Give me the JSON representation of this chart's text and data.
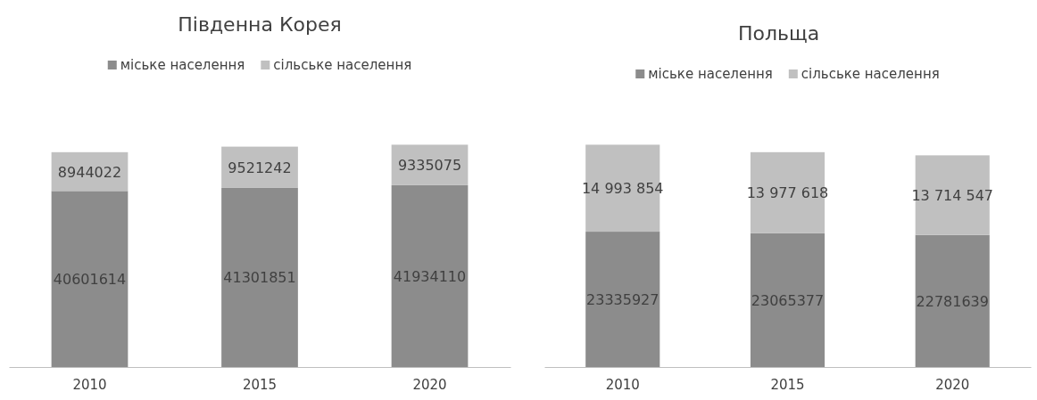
{
  "chart_data": [
    {
      "type": "bar",
      "title": "Південна Корея",
      "categories": [
        "2010",
        "2015",
        "2020"
      ],
      "stacked": true,
      "legend": "top",
      "grid": false,
      "series": [
        {
          "name": "міське населення",
          "color": "#8c8c8c",
          "values": [
            40601614,
            41301851,
            41934110
          ],
          "value_labels": [
            "40601614",
            "41301851",
            "41934110"
          ]
        },
        {
          "name": "сільське населення",
          "color": "#c0c0c0",
          "values": [
            8944022,
            9521242,
            9335075
          ],
          "value_labels": [
            "8944022",
            "9521242",
            "9335075"
          ]
        }
      ]
    },
    {
      "type": "bar",
      "title": "Польща",
      "categories": [
        "2010",
        "2015",
        "2020"
      ],
      "stacked": true,
      "legend": "top",
      "grid": false,
      "series": [
        {
          "name": "міське населення",
          "color": "#8c8c8c",
          "values": [
            23335927,
            23065377,
            22781639
          ],
          "value_labels": [
            "23335927",
            "23065377",
            "22781639"
          ]
        },
        {
          "name": "сільське населення",
          "color": "#c0c0c0",
          "values": [
            14993854,
            13977618,
            13714547
          ],
          "value_labels": [
            "14 993 854",
            "13 977 618",
            "13 714 547"
          ]
        }
      ]
    }
  ]
}
